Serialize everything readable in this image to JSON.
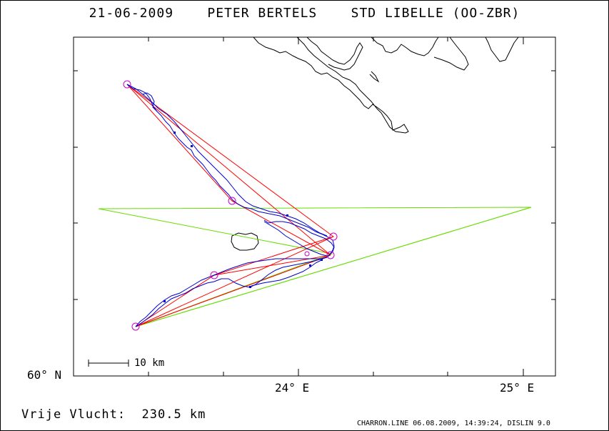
{
  "header": {
    "title": "21-06-2009    PETER BERTELS    STD LIBELLE (OO-ZBR)"
  },
  "axes": {
    "lat_label": "60° N",
    "lon_labels": [
      "24° E",
      "25° E"
    ]
  },
  "scale": {
    "label": "10 km"
  },
  "footer": {
    "distance": "Vrije Vlucht:  230.5 km",
    "credit": "CHARRON.LINE 06.08.2009, 14:39:24, DISLIN 9.0"
  },
  "colors": {
    "track": "#0000cc",
    "task": "#ff0000",
    "triangle": "#66dd00",
    "turnpoint": "#cc00cc",
    "coast": "#000000"
  }
}
